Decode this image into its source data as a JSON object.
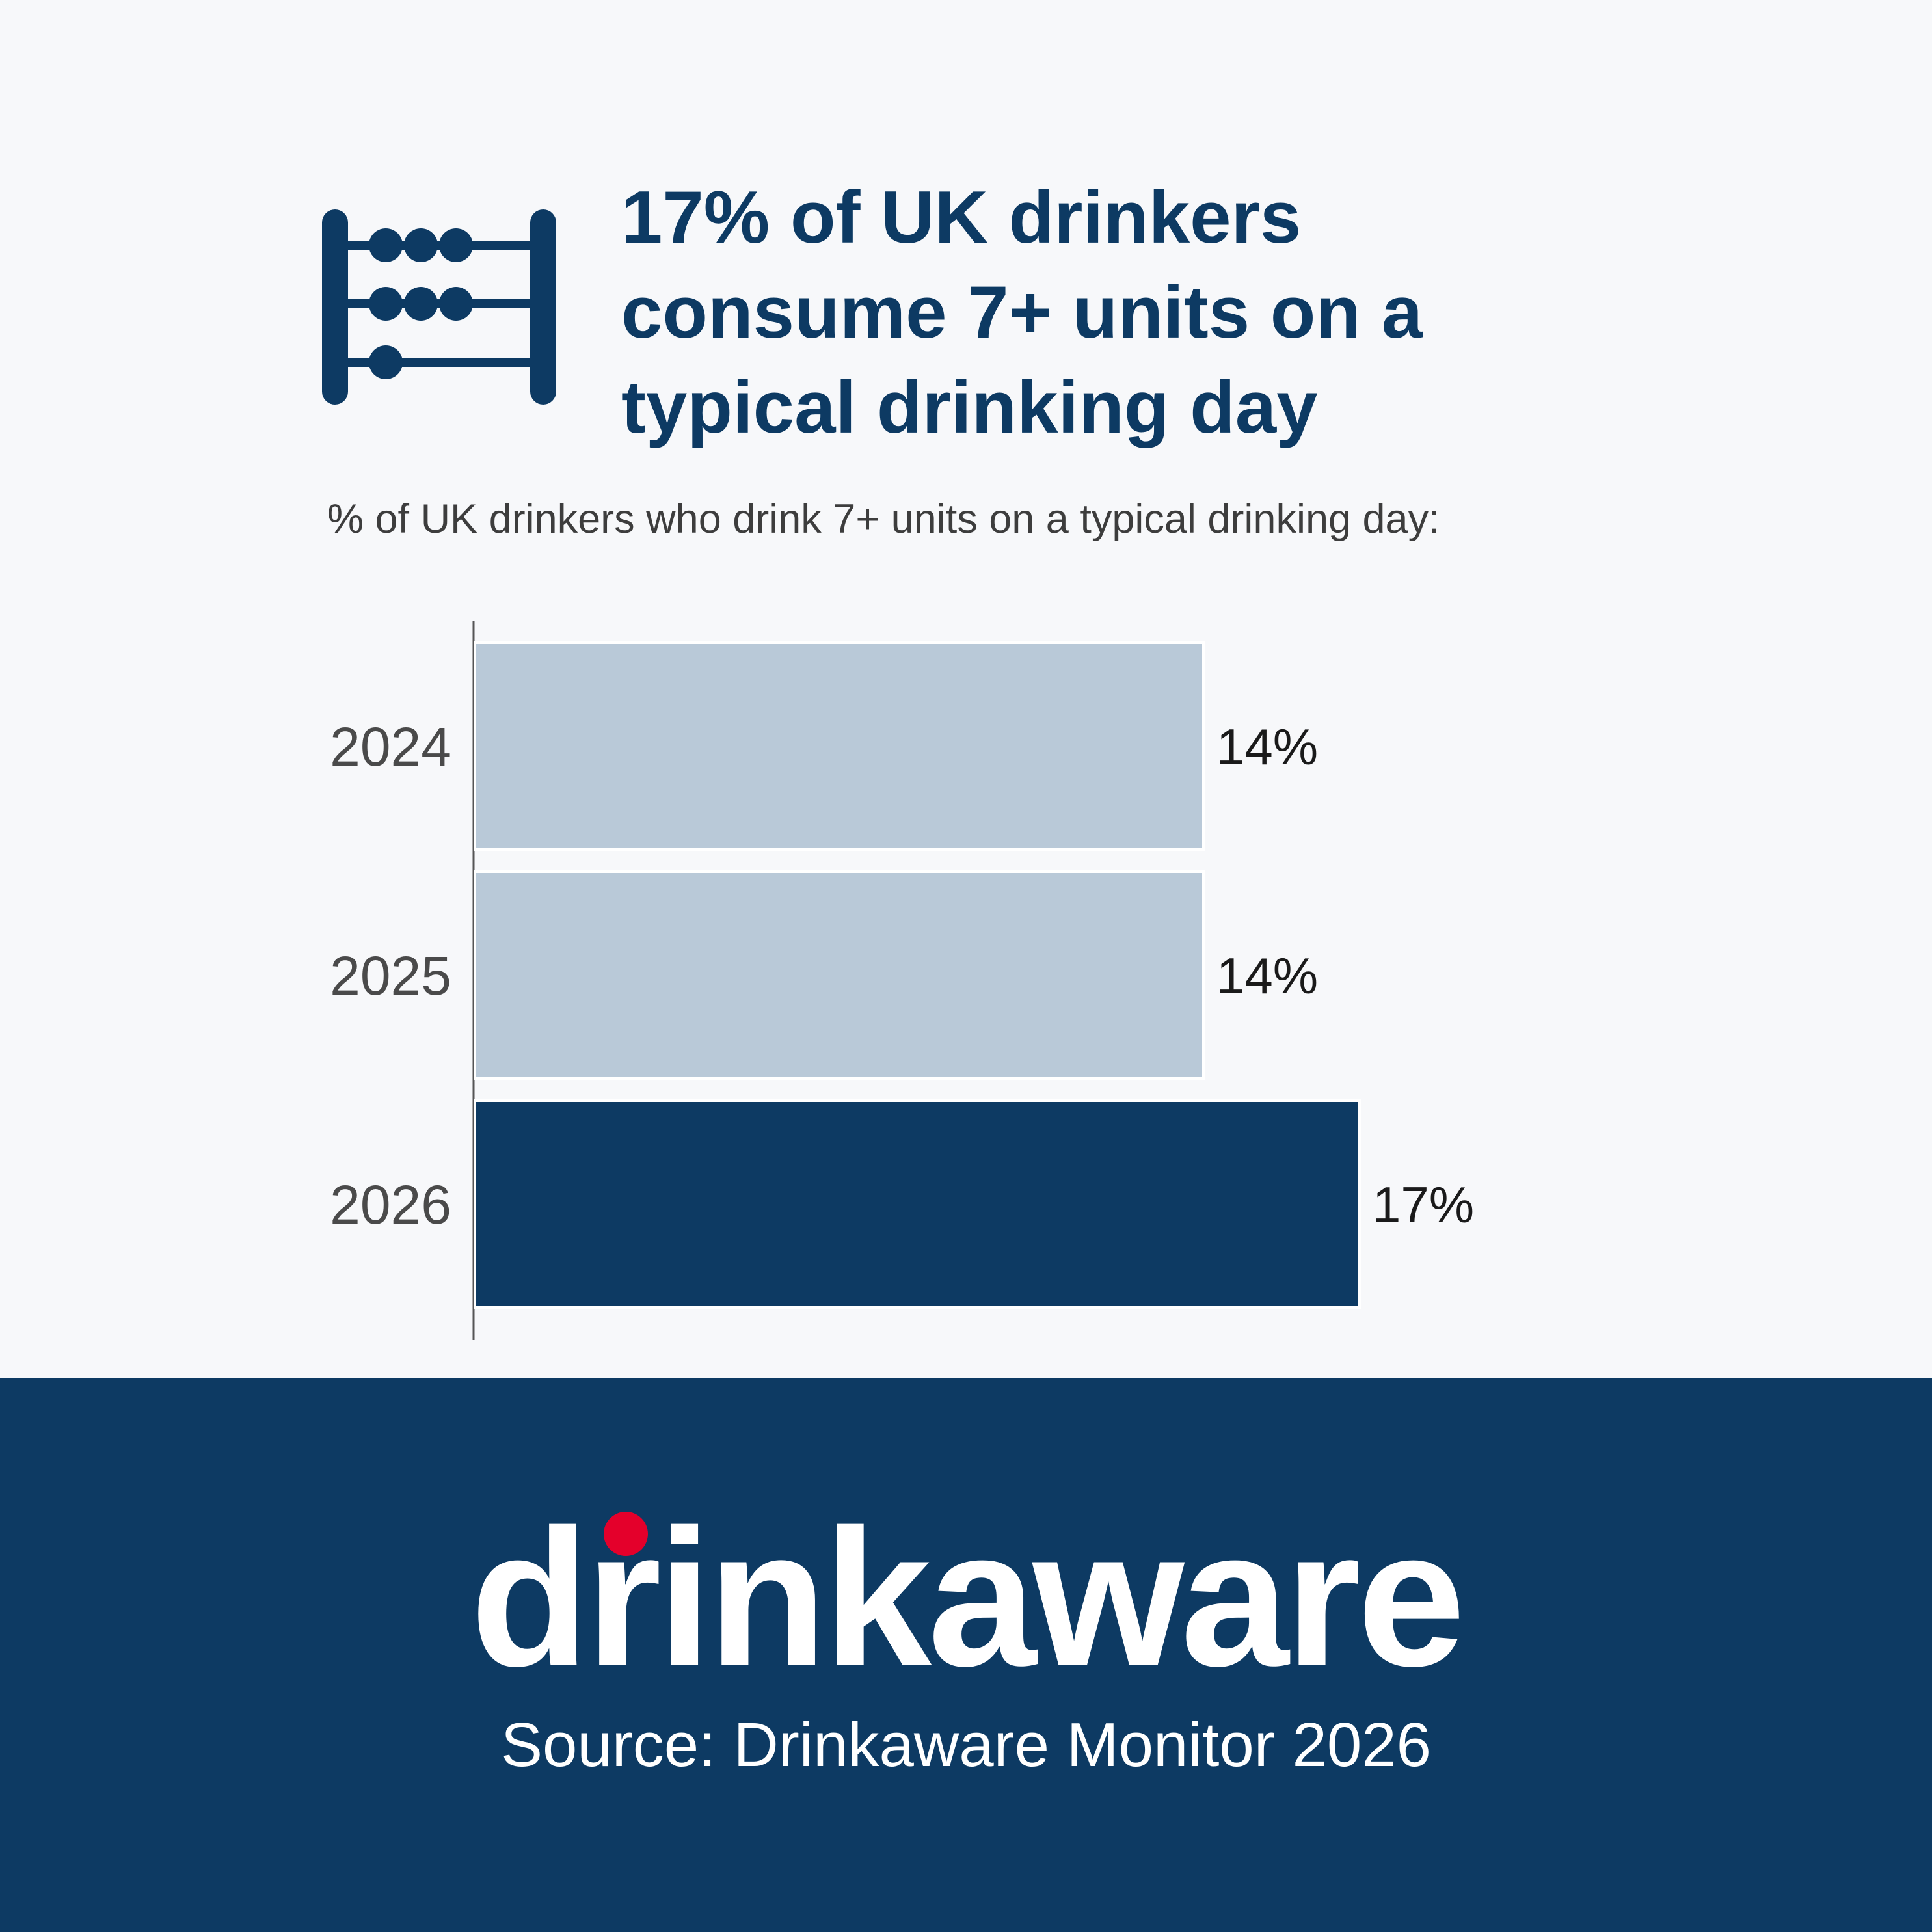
{
  "headline": {
    "line1": "17% of UK drinkers",
    "line2": "consume 7+ units on a",
    "line3": "typical drinking day"
  },
  "icon": "abacus-icon",
  "subtitle": "% of UK drinkers who drink 7+ units on a typical drinking day:",
  "chart_data": {
    "type": "bar",
    "orientation": "horizontal",
    "title": "",
    "xlabel": "",
    "ylabel": "",
    "categories": [
      "2024",
      "2025",
      "2026"
    ],
    "values": [
      14,
      14,
      17
    ],
    "value_labels": [
      "14%",
      "14%",
      "17%"
    ],
    "xlim": [
      0,
      20
    ],
    "grid": false,
    "legend": "none",
    "bar_colors": [
      "#b9c9d8",
      "#b9c9d8",
      "#0d3a63"
    ]
  },
  "brand": {
    "logo_text": "drinkaware",
    "source": "Source: Drinkaware Monitor 2026"
  },
  "colors": {
    "navy": "#0d3a63",
    "light_bar": "#b9c9d8",
    "accent_dot": "#e4002b",
    "background": "#f7f8fa"
  }
}
